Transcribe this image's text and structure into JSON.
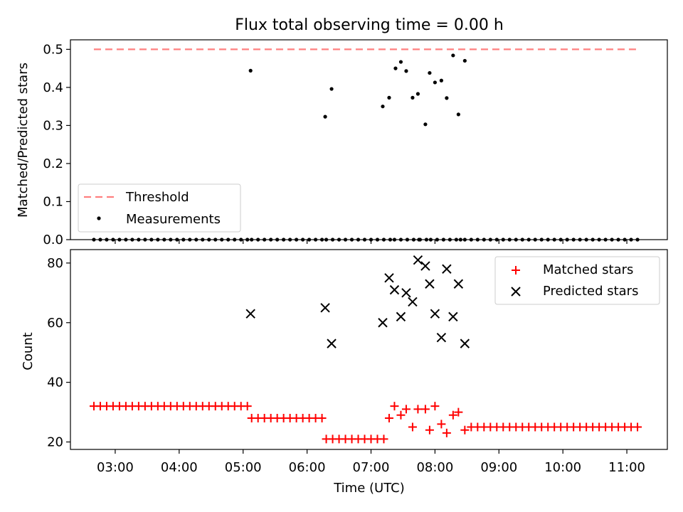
{
  "chart_data": [
    {
      "type": "scatter",
      "title": "Flux total observing time = 0.00 h",
      "xlabel": "",
      "ylabel": "Matched/Predicted stars",
      "ylim": [
        0,
        0.525
      ],
      "xlim": [
        "02:18",
        "11:38"
      ],
      "yticks": [
        "0.0",
        "0.1",
        "0.2",
        "0.3",
        "0.4",
        "0.5"
      ],
      "threshold": {
        "name": "Threshold",
        "value": 0.5,
        "x": [
          "02:40",
          "11:10"
        ],
        "color": "#ff7f7f"
      },
      "legend": {
        "position": "lower-left",
        "entries": [
          "Threshold",
          "Measurements"
        ]
      },
      "series": [
        {
          "name": "Measurements",
          "color": "#000000",
          "x": [
            "02:40",
            "02:46",
            "02:52",
            "02:58",
            "03:04",
            "03:10",
            "03:16",
            "03:22",
            "03:28",
            "03:34",
            "03:40",
            "03:46",
            "03:52",
            "03:58",
            "04:04",
            "04:10",
            "04:16",
            "04:22",
            "04:28",
            "04:34",
            "04:40",
            "04:46",
            "04:52",
            "04:58",
            "05:04",
            "05:08",
            "05:14",
            "05:20",
            "05:26",
            "05:32",
            "05:38",
            "05:44",
            "05:50",
            "05:56",
            "06:02",
            "06:08",
            "06:14",
            "06:18",
            "06:24",
            "06:30",
            "06:36",
            "06:42",
            "06:48",
            "06:54",
            "07:00",
            "07:06",
            "07:12",
            "07:18",
            "07:22",
            "07:28",
            "07:34",
            "07:40",
            "07:46",
            "07:52",
            "07:56",
            "08:02",
            "08:08",
            "08:14",
            "08:20",
            "08:24",
            "08:28",
            "08:34",
            "08:40",
            "08:46",
            "08:52",
            "08:58",
            "09:04",
            "09:10",
            "09:16",
            "09:22",
            "09:28",
            "09:34",
            "09:40",
            "09:46",
            "09:52",
            "09:58",
            "10:04",
            "10:10",
            "10:16",
            "10:22",
            "10:28",
            "10:34",
            "10:40",
            "10:46",
            "10:52",
            "10:58",
            "11:04",
            "11:10",
            "05:07",
            "06:17",
            "06:23",
            "07:11",
            "07:17",
            "07:23",
            "07:28",
            "07:33",
            "07:39",
            "07:44",
            "07:51",
            "07:55",
            "08:00",
            "08:06",
            "08:11",
            "08:17",
            "08:22",
            "08:28",
            "07:45"
          ],
          "y": [
            0,
            0,
            0,
            0,
            0,
            0,
            0,
            0,
            0,
            0,
            0,
            0,
            0,
            0,
            0,
            0,
            0,
            0,
            0,
            0,
            0,
            0,
            0,
            0,
            0,
            0,
            0,
            0,
            0,
            0,
            0,
            0,
            0,
            0,
            0,
            0,
            0,
            0,
            0,
            0,
            0,
            0,
            0,
            0,
            0,
            0,
            0,
            0,
            0,
            0,
            0,
            0,
            0,
            0,
            0,
            0,
            0,
            0,
            0,
            0,
            0,
            0,
            0,
            0,
            0,
            0,
            0,
            0,
            0,
            0,
            0,
            0,
            0,
            0,
            0,
            0,
            0,
            0,
            0,
            0,
            0,
            0,
            0,
            0,
            0,
            0,
            0,
            0,
            0.444,
            0.323,
            0.396,
            0.35,
            0.373,
            0.45,
            0.467,
            0.443,
            0.373,
            0.383,
            0.303,
            0.438,
            0.413,
            0.418,
            0.372,
            0.484,
            0.329,
            0.47,
            0
          ]
        }
      ]
    },
    {
      "type": "scatter",
      "title": "",
      "xlabel": "Time (UTC)",
      "ylabel": "Count",
      "ylim": [
        17.5,
        84.5
      ],
      "xlim": [
        "02:18",
        "11:38"
      ],
      "xticks": [
        "03:00",
        "04:00",
        "05:00",
        "06:00",
        "07:00",
        "08:00",
        "09:00",
        "10:00",
        "11:00"
      ],
      "yticks": [
        "20",
        "40",
        "60",
        "80"
      ],
      "legend": {
        "position": "top-right",
        "entries": [
          "Matched stars",
          "Predicted stars"
        ]
      },
      "series": [
        {
          "name": "Matched stars",
          "marker": "plus",
          "color": "#ff0000",
          "x": [
            "02:40",
            "02:46",
            "02:52",
            "02:58",
            "03:04",
            "03:10",
            "03:16",
            "03:22",
            "03:28",
            "03:34",
            "03:40",
            "03:46",
            "03:52",
            "03:58",
            "04:04",
            "04:10",
            "04:16",
            "04:22",
            "04:28",
            "04:34",
            "04:40",
            "04:46",
            "04:52",
            "04:58",
            "05:04",
            "05:08",
            "05:14",
            "05:20",
            "05:26",
            "05:32",
            "05:38",
            "05:44",
            "05:50",
            "05:56",
            "06:02",
            "06:08",
            "06:14",
            "06:18",
            "06:24",
            "06:30",
            "06:36",
            "06:42",
            "06:48",
            "06:54",
            "07:00",
            "07:06",
            "07:12",
            "07:17",
            "07:22",
            "07:28",
            "07:33",
            "07:39",
            "07:44",
            "07:51",
            "07:55",
            "08:00",
            "08:06",
            "08:11",
            "08:17",
            "08:22",
            "08:28",
            "08:34",
            "08:40",
            "08:46",
            "08:52",
            "08:58",
            "09:04",
            "09:10",
            "09:16",
            "09:22",
            "09:28",
            "09:34",
            "09:40",
            "09:46",
            "09:52",
            "09:58",
            "10:04",
            "10:10",
            "10:16",
            "10:22",
            "10:28",
            "10:34",
            "10:40",
            "10:46",
            "10:52",
            "10:58",
            "11:04",
            "11:10"
          ],
          "y": [
            32,
            32,
            32,
            32,
            32,
            32,
            32,
            32,
            32,
            32,
            32,
            32,
            32,
            32,
            32,
            32,
            32,
            32,
            32,
            32,
            32,
            32,
            32,
            32,
            32,
            28,
            28,
            28,
            28,
            28,
            28,
            28,
            28,
            28,
            28,
            28,
            28,
            21,
            21,
            21,
            21,
            21,
            21,
            21,
            21,
            21,
            21,
            28,
            32,
            29,
            31,
            25,
            31,
            31,
            24,
            32,
            26,
            23,
            29,
            30,
            24,
            25,
            25,
            25,
            25,
            25,
            25,
            25,
            25,
            25,
            25,
            25,
            25,
            25,
            25,
            25,
            25,
            25,
            25,
            25,
            25,
            25,
            25,
            25,
            25,
            25,
            25,
            25
          ]
        },
        {
          "name": "Predicted stars",
          "marker": "x",
          "color": "#000000",
          "x": [
            "05:07",
            "06:17",
            "06:23",
            "07:11",
            "07:17",
            "07:22",
            "07:28",
            "07:33",
            "07:39",
            "07:44",
            "07:51",
            "07:55",
            "08:00",
            "08:06",
            "08:11",
            "08:17",
            "08:22",
            "08:28"
          ],
          "y": [
            63,
            65,
            53,
            60,
            75,
            71,
            62,
            70,
            67,
            81,
            79,
            73,
            63,
            55,
            78,
            62,
            73,
            53
          ]
        }
      ]
    }
  ]
}
